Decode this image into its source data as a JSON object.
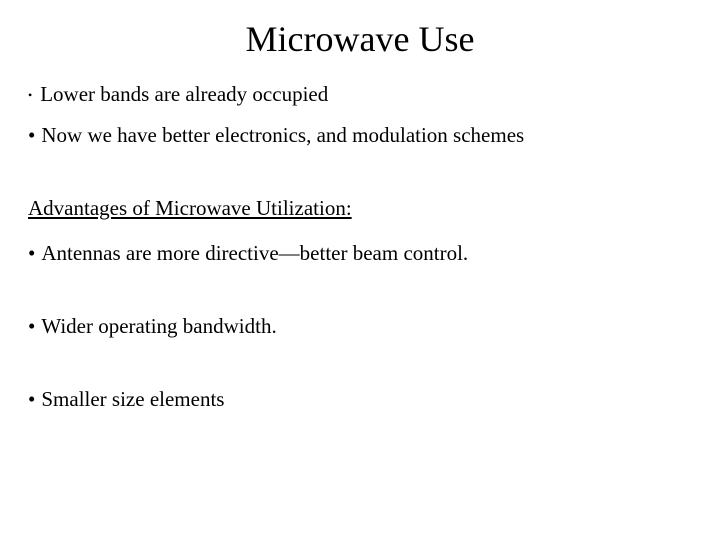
{
  "title": "Microwave Use",
  "bullets_top": [
    "Lower bands are already occupied",
    "Now we have better electronics, and modulation schemes"
  ],
  "section_heading": "Advantages of Microwave Utilization:",
  "advantages": [
    "Antennas are more directive—better beam control.",
    "Wider operating bandwidth.",
    " Smaller size elements"
  ],
  "colors": {
    "background": "#ffffff",
    "text": "#000000"
  },
  "typography": {
    "title_fontsize": 36,
    "body_fontsize": 21,
    "font_family": "Times New Roman"
  }
}
